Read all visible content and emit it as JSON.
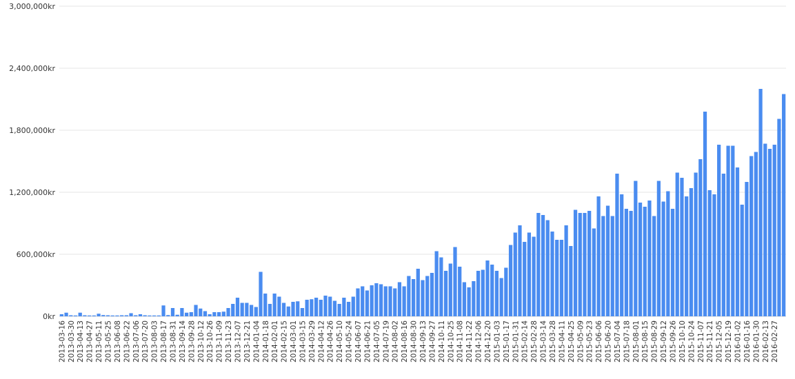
{
  "chart_data": {
    "type": "bar",
    "title": "",
    "xlabel": "",
    "ylabel": "",
    "ylim": [
      0,
      3000000
    ],
    "y_ticks": [
      "0kr",
      "600,000kr",
      "1,200,000kr",
      "1,800,000kr",
      "2,400,000kr",
      "3,000,000kr"
    ],
    "grid": true,
    "legend": "none",
    "bar_color": "#4a8cf0",
    "x_tick_labels": [
      "2013-03-16",
      "2013-03-30",
      "2013-04-13",
      "2013-04-27",
      "2013-05-11",
      "2013-05-25",
      "2013-06-08",
      "2013-06-22",
      "2013-07-06",
      "2013-07-20",
      "2013-08-03",
      "2013-08-17",
      "2013-08-31",
      "2013-09-14",
      "2013-09-28",
      "2013-10-12",
      "2013-10-26",
      "2013-11-09",
      "2013-11-23",
      "2013-12-07",
      "2013-12-21",
      "2014-01-04",
      "2014-01-18",
      "2014-02-01",
      "2014-02-15",
      "2014-03-01",
      "2014-03-15",
      "2014-03-29",
      "2014-04-12",
      "2014-04-26",
      "2014-05-10",
      "2014-05-24",
      "2014-06-07",
      "2014-06-21",
      "2014-07-05",
      "2014-07-19",
      "2014-08-02",
      "2014-08-16",
      "2014-08-30",
      "2014-09-13",
      "2014-09-27",
      "2014-10-11",
      "2014-10-25",
      "2014-11-08",
      "2014-11-22",
      "2014-12-06",
      "2014-12-20",
      "2015-01-03",
      "2015-01-17",
      "2015-01-31",
      "2015-02-14",
      "2015-02-28",
      "2015-03-14",
      "2015-03-28",
      "2015-04-11",
      "2015-04-25",
      "2015-05-09",
      "2015-05-23",
      "2015-06-06",
      "2015-06-20",
      "2015-07-04",
      "2015-07-18",
      "2015-08-01",
      "2015-08-15",
      "2015-08-29",
      "2015-09-12",
      "2015-09-26",
      "2015-10-10",
      "2015-10-24",
      "2015-11-07",
      "2015-11-21",
      "2015-12-05",
      "2015-12-19",
      "2016-01-02",
      "2016-01-16",
      "2016-01-30",
      "2016-02-13",
      "2016-02-27"
    ],
    "values": [
      20000,
      35000,
      10000,
      8000,
      35000,
      10000,
      8000,
      8000,
      25000,
      12000,
      10000,
      8000,
      8000,
      10000,
      10000,
      30000,
      10000,
      20000,
      10000,
      8000,
      8000,
      8000,
      105000,
      12000,
      80000,
      15000,
      80000,
      35000,
      40000,
      110000,
      75000,
      50000,
      20000,
      40000,
      40000,
      45000,
      80000,
      120000,
      180000,
      130000,
      130000,
      110000,
      90000,
      430000,
      220000,
      120000,
      220000,
      190000,
      130000,
      95000,
      140000,
      145000,
      80000,
      160000,
      165000,
      180000,
      160000,
      200000,
      190000,
      150000,
      120000,
      180000,
      140000,
      190000,
      270000,
      290000,
      250000,
      300000,
      320000,
      310000,
      290000,
      290000,
      270000,
      330000,
      290000,
      390000,
      360000,
      460000,
      350000,
      390000,
      420000,
      630000,
      570000,
      440000,
      510000,
      670000,
      480000,
      330000,
      280000,
      340000,
      440000,
      450000,
      540000,
      500000,
      440000,
      370000,
      470000,
      690000,
      810000,
      880000,
      720000,
      810000,
      770000,
      1000000,
      980000,
      930000,
      820000,
      740000,
      740000,
      880000,
      680000,
      1030000,
      1000000,
      1000000,
      1020000,
      850000,
      1160000,
      970000,
      1070000,
      970000,
      1380000,
      1180000,
      1040000,
      1020000,
      1310000,
      1100000,
      1060000,
      1120000,
      970000,
      1310000,
      1110000,
      1210000,
      1040000,
      1390000,
      1340000,
      1160000,
      1240000,
      1390000,
      1520000,
      1980000,
      1220000,
      1180000,
      1660000,
      1380000,
      1650000,
      1650000,
      1440000,
      1080000,
      1300000,
      1550000,
      1590000,
      2200000,
      1670000,
      1620000,
      1660000,
      1910000,
      2150000
    ]
  }
}
